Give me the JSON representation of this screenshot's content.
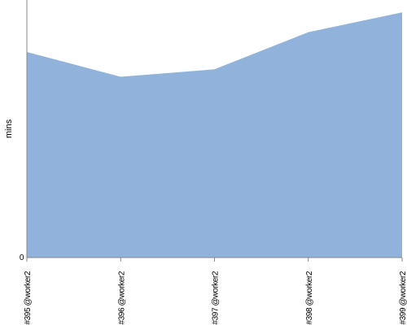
{
  "chart_data": {
    "type": "area",
    "title": "",
    "xlabel": "",
    "ylabel": "mins",
    "categories": [
      "#395 @worker2",
      "#396 @worker2",
      "#397 @worker2",
      "#398 @worker2",
      "#399 @worker2"
    ],
    "series": [
      {
        "values": [
          83,
          73,
          76,
          91,
          99
        ]
      }
    ],
    "ylim": [
      0,
      104
    ],
    "y_ticks": [
      0
    ],
    "y_tick_labels": [
      "0"
    ],
    "grid": false,
    "legend": "none",
    "colors": {
      "area": "#90b2db",
      "axis": "#888888",
      "text": "#000000"
    }
  }
}
